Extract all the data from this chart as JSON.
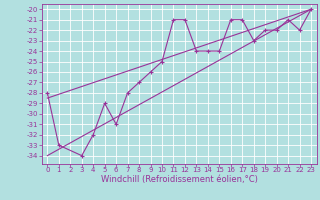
{
  "xlabel": "Windchill (Refroidissement éolien,°C)",
  "bg_color": "#b2e0e0",
  "grid_color": "#ffffff",
  "line_color": "#993399",
  "xlim": [
    -0.5,
    23.5
  ],
  "ylim": [
    -34.8,
    -19.5
  ],
  "x_data": [
    0,
    1,
    3,
    4,
    5,
    6,
    7,
    8,
    9,
    10,
    11,
    12,
    13,
    14,
    15,
    16,
    17,
    18,
    19,
    20,
    21,
    22,
    23
  ],
  "y_data": [
    -28,
    -33,
    -34,
    -32,
    -29,
    -31,
    -28,
    -27,
    -26,
    -25,
    -21,
    -21,
    -24,
    -24,
    -24,
    -21,
    -21,
    -23,
    -22,
    -22,
    -21,
    -22,
    -20
  ],
  "xticks": [
    0,
    1,
    2,
    3,
    4,
    5,
    6,
    7,
    8,
    9,
    10,
    11,
    12,
    13,
    14,
    15,
    16,
    17,
    18,
    19,
    20,
    21,
    22,
    23
  ],
  "yticks": [
    -20,
    -21,
    -22,
    -23,
    -24,
    -25,
    -26,
    -27,
    -28,
    -29,
    -30,
    -31,
    -32,
    -33,
    -34
  ],
  "trend1_x": [
    0,
    23
  ],
  "trend1_y": [
    -28.5,
    -20
  ],
  "trend2_x": [
    0,
    23
  ],
  "trend2_y": [
    -34.0,
    -20.0
  ],
  "xlabel_fontsize": 6,
  "tick_fontsize": 5
}
